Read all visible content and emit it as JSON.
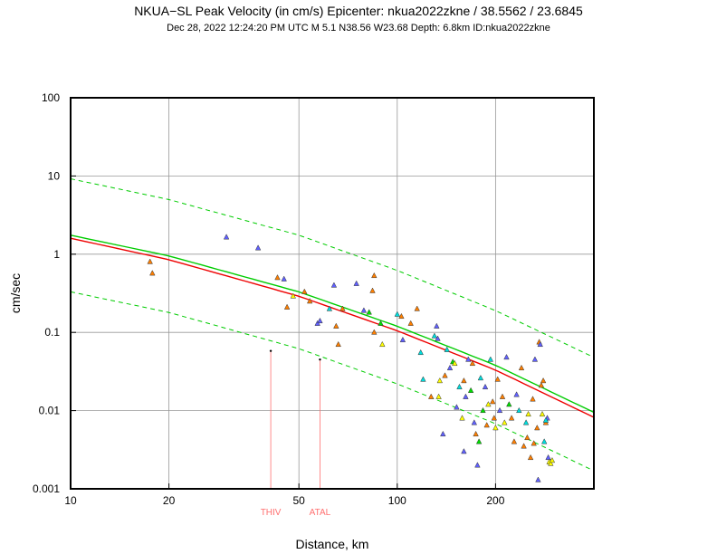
{
  "chart_data": {
    "type": "scatter",
    "title": "NKUA−SL Peak Velocity (in cm/s) Epicenter: nkua2022zkne / 38.5562 / 23.6845",
    "subtitle": "Dec 28, 2022 12:24:20 PM UTC   M 5.1   N38.56 W23.68   Depth: 6.8km   ID:nkua2022zkne",
    "xlabel": "Distance, km",
    "ylabel": "cm/sec",
    "xscale": "log",
    "yscale": "log",
    "xlim": [
      10,
      400
    ],
    "ylim": [
      0.001,
      100
    ],
    "grid": true,
    "x_ticks": [
      {
        "value": 10,
        "label": "10"
      },
      {
        "value": 20,
        "label": "20"
      },
      {
        "value": 50,
        "label": "50"
      },
      {
        "value": 100,
        "label": "100"
      },
      {
        "value": 200,
        "label": "200"
      }
    ],
    "y_ticks": [
      {
        "value": 0.001,
        "label": "0.001"
      },
      {
        "value": 0.01,
        "label": "0.01"
      },
      {
        "value": 0.1,
        "label": "0.1"
      },
      {
        "value": 1,
        "label": "1"
      },
      {
        "value": 10,
        "label": "10"
      },
      {
        "value": 100,
        "label": "100"
      }
    ],
    "curves": [
      {
        "name": "green-median",
        "color": "#00cc00",
        "dash": false,
        "x": [
          10,
          20,
          50,
          100,
          200,
          400
        ],
        "y": [
          1.75,
          0.95,
          0.33,
          0.12,
          0.038,
          0.0095
        ]
      },
      {
        "name": "red-median",
        "color": "#ee0000",
        "dash": false,
        "x": [
          10,
          20,
          50,
          100,
          200,
          400
        ],
        "y": [
          1.6,
          0.85,
          0.29,
          0.105,
          0.033,
          0.0082
        ]
      },
      {
        "name": "upper-bound",
        "color": "#00cc00",
        "dash": true,
        "x": [
          10,
          20,
          50,
          100,
          200,
          400
        ],
        "y": [
          9.2,
          5.0,
          1.75,
          0.62,
          0.19,
          0.048
        ]
      },
      {
        "name": "lower-bound",
        "color": "#00cc00",
        "dash": true,
        "x": [
          10,
          20,
          50,
          100,
          200,
          400
        ],
        "y": [
          0.33,
          0.18,
          0.062,
          0.022,
          0.0068,
          0.0017
        ]
      }
    ],
    "stations": [
      {
        "label": "THIV",
        "x": 41,
        "y": 0.058,
        "color": "#ff7070"
      },
      {
        "label": "ATAL",
        "x": 58,
        "y": 0.045,
        "color": "#ff7070"
      }
    ],
    "points": [
      {
        "x": 17.5,
        "y": 0.8,
        "c": "#ff7f00"
      },
      {
        "x": 17.8,
        "y": 0.57,
        "c": "#ff7f00"
      },
      {
        "x": 30,
        "y": 1.65,
        "c": "#6060ff"
      },
      {
        "x": 37.5,
        "y": 1.2,
        "c": "#6060ff"
      },
      {
        "x": 43,
        "y": 0.5,
        "c": "#ff7f00"
      },
      {
        "x": 45,
        "y": 0.48,
        "c": "#6060ff"
      },
      {
        "x": 46,
        "y": 0.21,
        "c": "#ff7f00"
      },
      {
        "x": 48,
        "y": 0.29,
        "c": "#ffff00"
      },
      {
        "x": 52,
        "y": 0.33,
        "c": "#ff7f00"
      },
      {
        "x": 54,
        "y": 0.25,
        "c": "#ff7f00"
      },
      {
        "x": 57,
        "y": 0.13,
        "c": "#6060ff"
      },
      {
        "x": 58,
        "y": 0.14,
        "c": "#6060ff"
      },
      {
        "x": 62,
        "y": 0.2,
        "c": "#00dddd"
      },
      {
        "x": 64,
        "y": 0.4,
        "c": "#6060ff"
      },
      {
        "x": 65,
        "y": 0.12,
        "c": "#ff7f00"
      },
      {
        "x": 66,
        "y": 0.07,
        "c": "#ff7f00"
      },
      {
        "x": 68,
        "y": 0.2,
        "c": "#ff7f00"
      },
      {
        "x": 75,
        "y": 0.42,
        "c": "#6060ff"
      },
      {
        "x": 79,
        "y": 0.19,
        "c": "#6060ff"
      },
      {
        "x": 82,
        "y": 0.18,
        "c": "#00dd00"
      },
      {
        "x": 84,
        "y": 0.34,
        "c": "#ff7f00"
      },
      {
        "x": 85,
        "y": 0.53,
        "c": "#ff7f00"
      },
      {
        "x": 89,
        "y": 0.13,
        "c": "#00dd00"
      },
      {
        "x": 90,
        "y": 0.07,
        "c": "#ffff00"
      },
      {
        "x": 85,
        "y": 0.1,
        "c": "#ff7f00"
      },
      {
        "x": 100,
        "y": 0.17,
        "c": "#00dddd"
      },
      {
        "x": 103,
        "y": 0.16,
        "c": "#ff7f00"
      },
      {
        "x": 104,
        "y": 0.08,
        "c": "#6060ff"
      },
      {
        "x": 110,
        "y": 0.13,
        "c": "#ff7f00"
      },
      {
        "x": 115,
        "y": 0.2,
        "c": "#ff7f00"
      },
      {
        "x": 118,
        "y": 0.055,
        "c": "#00dddd"
      },
      {
        "x": 120,
        "y": 0.025,
        "c": "#00dddd"
      },
      {
        "x": 127,
        "y": 0.015,
        "c": "#ff7f00"
      },
      {
        "x": 130,
        "y": 0.09,
        "c": "#00dddd"
      },
      {
        "x": 132,
        "y": 0.12,
        "c": "#6060ff"
      },
      {
        "x": 133,
        "y": 0.083,
        "c": "#6060ff"
      },
      {
        "x": 134,
        "y": 0.015,
        "c": "#ffff00"
      },
      {
        "x": 135,
        "y": 0.024,
        "c": "#ffff00"
      },
      {
        "x": 138,
        "y": 0.005,
        "c": "#6060ff"
      },
      {
        "x": 140,
        "y": 0.028,
        "c": "#ff7f00"
      },
      {
        "x": 142,
        "y": 0.06,
        "c": "#00dddd"
      },
      {
        "x": 145,
        "y": 0.035,
        "c": "#6060ff"
      },
      {
        "x": 148,
        "y": 0.042,
        "c": "#00dd00"
      },
      {
        "x": 150,
        "y": 0.04,
        "c": "#ffff00"
      },
      {
        "x": 152,
        "y": 0.011,
        "c": "#6060ff"
      },
      {
        "x": 155,
        "y": 0.02,
        "c": "#00dddd"
      },
      {
        "x": 158,
        "y": 0.008,
        "c": "#ffff00"
      },
      {
        "x": 160,
        "y": 0.024,
        "c": "#ff7f00"
      },
      {
        "x": 162,
        "y": 0.015,
        "c": "#6060ff"
      },
      {
        "x": 165,
        "y": 0.045,
        "c": "#6060ff"
      },
      {
        "x": 168,
        "y": 0.018,
        "c": "#00dd00"
      },
      {
        "x": 170,
        "y": 0.04,
        "c": "#ff7f00"
      },
      {
        "x": 172,
        "y": 0.007,
        "c": "#6060ff"
      },
      {
        "x": 174,
        "y": 0.005,
        "c": "#ff7f00"
      },
      {
        "x": 176,
        "y": 0.002,
        "c": "#6060ff"
      },
      {
        "x": 178,
        "y": 0.004,
        "c": "#00dd00"
      },
      {
        "x": 180,
        "y": 0.026,
        "c": "#00dddd"
      },
      {
        "x": 183,
        "y": 0.01,
        "c": "#00dd00"
      },
      {
        "x": 186,
        "y": 0.02,
        "c": "#6060ff"
      },
      {
        "x": 190,
        "y": 0.012,
        "c": "#ffff00"
      },
      {
        "x": 193,
        "y": 0.045,
        "c": "#00dddd"
      },
      {
        "x": 196,
        "y": 0.013,
        "c": "#ff7f00"
      },
      {
        "x": 198,
        "y": 0.008,
        "c": "#ff7f00"
      },
      {
        "x": 200,
        "y": 0.006,
        "c": "#ffff00"
      },
      {
        "x": 203,
        "y": 0.025,
        "c": "#ff7f00"
      },
      {
        "x": 206,
        "y": 0.01,
        "c": "#6060ff"
      },
      {
        "x": 210,
        "y": 0.015,
        "c": "#ff7f00"
      },
      {
        "x": 213,
        "y": 0.007,
        "c": "#ffff00"
      },
      {
        "x": 216,
        "y": 0.048,
        "c": "#6060ff"
      },
      {
        "x": 220,
        "y": 0.012,
        "c": "#00dd00"
      },
      {
        "x": 224,
        "y": 0.008,
        "c": "#ff7f00"
      },
      {
        "x": 228,
        "y": 0.004,
        "c": "#ff7f00"
      },
      {
        "x": 232,
        "y": 0.016,
        "c": "#6060ff"
      },
      {
        "x": 236,
        "y": 0.01,
        "c": "#00dddd"
      },
      {
        "x": 240,
        "y": 0.035,
        "c": "#ff7f00"
      },
      {
        "x": 244,
        "y": 0.0035,
        "c": "#ff7f00"
      },
      {
        "x": 248,
        "y": 0.007,
        "c": "#00dddd"
      },
      {
        "x": 252,
        "y": 0.009,
        "c": "#ffff00"
      },
      {
        "x": 256,
        "y": 0.0025,
        "c": "#ff7f00"
      },
      {
        "x": 260,
        "y": 0.014,
        "c": "#ff7f00"
      },
      {
        "x": 264,
        "y": 0.045,
        "c": "#6060ff"
      },
      {
        "x": 268,
        "y": 0.006,
        "c": "#ff7f00"
      },
      {
        "x": 270,
        "y": 0.0013,
        "c": "#6060ff"
      },
      {
        "x": 272,
        "y": 0.075,
        "c": "#ff7f00"
      },
      {
        "x": 274,
        "y": 0.07,
        "c": "#6060ff"
      },
      {
        "x": 276,
        "y": 0.021,
        "c": "#ff7f00"
      },
      {
        "x": 278,
        "y": 0.009,
        "c": "#ffff00"
      },
      {
        "x": 280,
        "y": 0.024,
        "c": "#ff7f00"
      },
      {
        "x": 282,
        "y": 0.004,
        "c": "#00dddd"
      },
      {
        "x": 285,
        "y": 0.007,
        "c": "#ff7f00"
      },
      {
        "x": 288,
        "y": 0.008,
        "c": "#6060ff"
      },
      {
        "x": 290,
        "y": 0.0025,
        "c": "#6060ff"
      },
      {
        "x": 292,
        "y": 0.0022,
        "c": "#ffff00"
      },
      {
        "x": 295,
        "y": 0.0021,
        "c": "#ffff00"
      },
      {
        "x": 298,
        "y": 0.0023,
        "c": "#ffff00"
      },
      {
        "x": 262,
        "y": 0.0038,
        "c": "#ff7f00"
      },
      {
        "x": 250,
        "y": 0.0045,
        "c": "#ff7f00"
      },
      {
        "x": 285,
        "y": 0.0075,
        "c": "#00dddd"
      },
      {
        "x": 188,
        "y": 0.0065,
        "c": "#ff7f00"
      },
      {
        "x": 160,
        "y": 0.003,
        "c": "#6060ff"
      }
    ]
  }
}
